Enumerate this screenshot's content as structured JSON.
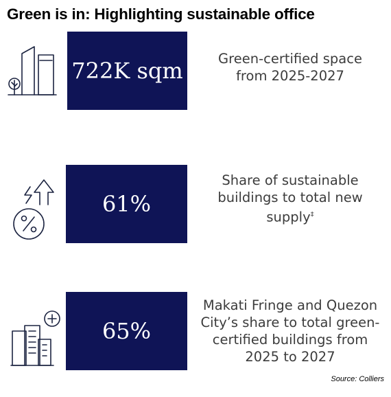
{
  "header": {
    "title": "Green is in: Highlighting sustainable office"
  },
  "stats": [
    {
      "value": "722K sqm",
      "description": [
        "Green-certified space",
        "from 2025-2027"
      ],
      "icon": "building-tree-icon"
    },
    {
      "value": "61%",
      "description": [
        "Share of sustainable",
        "buildings to total new",
        "supply"
      ],
      "footnote_mark": "‡",
      "icon": "percent-growth-icon"
    },
    {
      "value": "65%",
      "description": [
        "Makati Fringe and Quezon",
        "City’s share to total green-",
        "certified buildings from",
        "2025 to 2027"
      ],
      "icon": "buildings-plus-icon"
    }
  ],
  "footer": {
    "source": "Source: Colliers"
  },
  "colors": {
    "box": "#0f1456",
    "box_text": "#ffffff",
    "desc_text": "#3c3c3c",
    "icon_stroke": "#1b2340"
  }
}
